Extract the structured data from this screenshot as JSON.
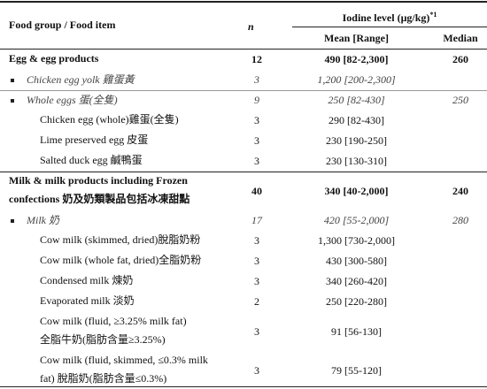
{
  "table": {
    "header": {
      "food": "Food group / Food item",
      "n": "n",
      "iodine": "Iodine level (μg/kg)",
      "iodine_note": "*1",
      "mean": "Mean [Range]",
      "median": "Median"
    },
    "groups": [
      {
        "name": [
          "Egg & egg products"
        ],
        "n": 12,
        "mean": "490 [82-2,300]",
        "median": 260,
        "subgroups": [
          {
            "name": "Chicken egg yolk 雞蛋黃",
            "n": 3,
            "mean": "1,200 [200-2,300]",
            "items": []
          },
          {
            "name": "Whole eggs 蛋(全隻)",
            "n": 9,
            "mean": "250 [82-430]",
            "median": 250,
            "items": [
              {
                "name": [
                  "Chicken egg (whole)雞蛋(全隻)"
                ],
                "n": 3,
                "mean": "290 [82-430]"
              },
              {
                "name": [
                  "Lime preserved egg 皮蛋"
                ],
                "n": 3,
                "mean": "230 [190-250]"
              },
              {
                "name": [
                  "Salted duck egg 鹹鴨蛋"
                ],
                "n": 3,
                "mean": "230 [130-310]"
              }
            ]
          }
        ]
      },
      {
        "name": [
          "Milk & milk products including Frozen",
          "confections 奶及奶類製品包括冰凍甜點"
        ],
        "n": 40,
        "mean": "340 [40-2,000]",
        "median": 240,
        "subgroups": [
          {
            "name": "Milk 奶",
            "n": 17,
            "mean": "420 [55-2,000]",
            "median": 280,
            "items": [
              {
                "name": [
                  "Cow milk (skimmed, dried)脫脂奶粉"
                ],
                "n": 3,
                "mean": "1,300 [730-2,000]"
              },
              {
                "name": [
                  "Cow milk (whole fat, dried)全脂奶粉"
                ],
                "n": 3,
                "mean": "430 [300-580]"
              },
              {
                "name": [
                  "Condensed milk 煉奶"
                ],
                "n": 3,
                "mean": "340 [260-420]"
              },
              {
                "name": [
                  "Evaporated milk 淡奶"
                ],
                "n": 2,
                "mean": "250 [220-280]"
              },
              {
                "name": [
                  "Cow milk (fluid, ≥3.25% milk fat)",
                  "全脂牛奶(脂肪含量≥3.25%)"
                ],
                "n": 3,
                "mean": "91 [56-130]"
              },
              {
                "name": [
                  "Cow milk (fluid, skimmed, ≤0.3% milk",
                  "fat) 脫脂奶(脂肪含量≤0.3%)"
                ],
                "n": 3,
                "mean": "79 [55-120]"
              }
            ]
          }
        ]
      }
    ]
  }
}
